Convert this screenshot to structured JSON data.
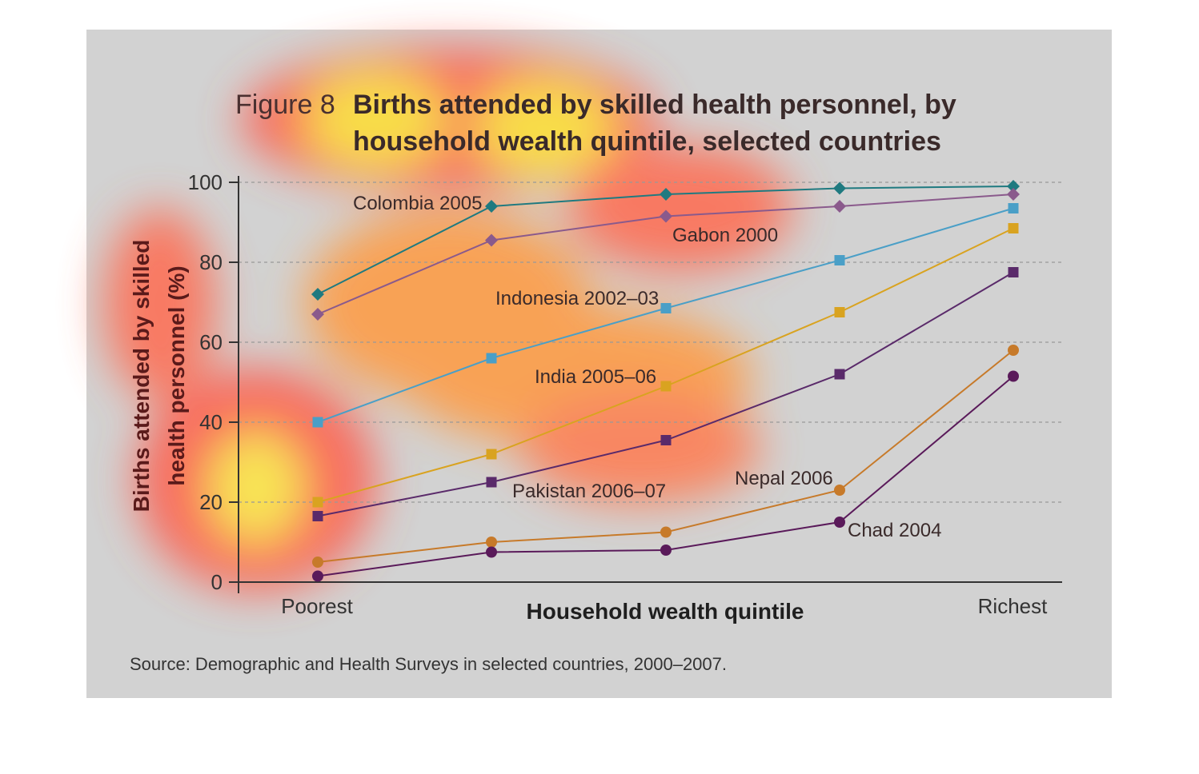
{
  "chart_data": {
    "type": "line",
    "title_prefix": "Figure 8",
    "title_lines": [
      "Births attended by skilled health personnel, by",
      "household wealth quintile, selected countries"
    ],
    "xlabel": "Household wealth quintile",
    "ylabel_lines": [
      "Births attended by skilled",
      "health personnel (%)"
    ],
    "x_tick_labels": [
      "Poorest",
      "Richest"
    ],
    "x": [
      1,
      2,
      3,
      4,
      5
    ],
    "ylim": [
      0,
      100
    ],
    "y_ticks": [
      "0",
      "20",
      "40",
      "60",
      "80",
      "100"
    ],
    "grid": true,
    "source": "Source: Demographic and Health Surveys in selected countries, 2000–2007.",
    "series": [
      {
        "name": "Colombia 2005",
        "values": [
          72,
          94,
          97,
          98.5,
          99
        ],
        "color": "#1f7a80",
        "marker": "diamond"
      },
      {
        "name": "Gabon 2000",
        "values": [
          67,
          85.5,
          91.5,
          94,
          97
        ],
        "color": "#8a5a8c",
        "marker": "diamond"
      },
      {
        "name": "Indonesia 2002–03",
        "values": [
          40,
          56,
          68.5,
          80.5,
          93.5
        ],
        "color": "#4a9fc7",
        "marker": "square"
      },
      {
        "name": "India 2005–06",
        "values": [
          20,
          32,
          49,
          67.5,
          88.5
        ],
        "color": "#d9a320",
        "marker": "square"
      },
      {
        "name": "Pakistan 2006–07",
        "values": [
          16.5,
          25,
          35.5,
          52,
          77.5
        ],
        "color": "#5a2a6a",
        "marker": "square"
      },
      {
        "name": "Nepal 2006",
        "values": [
          5,
          10,
          12.5,
          23,
          58
        ],
        "color": "#c77a2a",
        "marker": "circle"
      },
      {
        "name": "Chad 2004",
        "values": [
          1.5,
          7.5,
          8,
          15,
          51.5
        ],
        "color": "#5a1a5a",
        "marker": "circle"
      }
    ]
  }
}
